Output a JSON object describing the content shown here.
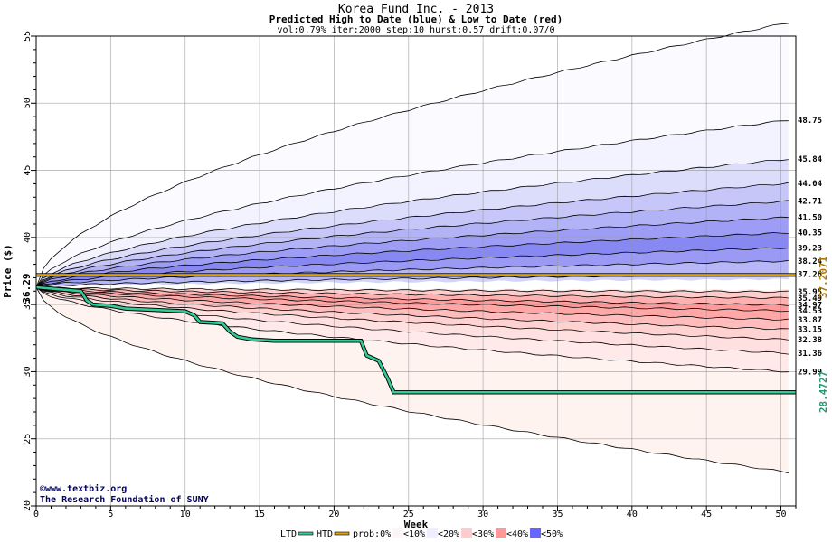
{
  "chart_data": {
    "type": "area",
    "title": "Korea Fund Inc. - 2013",
    "subtitle": "Predicted High to Date (blue) &  Low to Date (red)",
    "params": "vol:0.79% iter:2000 step:10 hurst:0.57 drift:0.07/0",
    "xlabel": "Week",
    "ylabel": "Price ($)",
    "xlim": [
      0,
      51
    ],
    "ylim": [
      20,
      55
    ],
    "xticks": [
      0,
      5,
      10,
      15,
      20,
      25,
      30,
      35,
      40,
      45,
      50
    ],
    "yticks": [
      20,
      25,
      30,
      35,
      40,
      45,
      50,
      55
    ],
    "grid": true,
    "start_price": 36.29,
    "start_label": "36.29",
    "right_labels": [
      "48.75",
      "45.84",
      "44.04",
      "42.71",
      "41.50",
      "40.35",
      "39.23",
      "38.24",
      "37.26",
      "35.95",
      "35.49",
      "34.97",
      "34.53",
      "33.87",
      "33.15",
      "32.38",
      "31.36",
      "29.99"
    ],
    "high_bands_end": [
      48.75,
      45.84,
      44.04,
      42.71,
      41.5,
      40.35,
      39.23,
      38.24,
      37.26
    ],
    "low_bands_end": [
      35.95,
      35.49,
      34.97,
      34.53,
      33.87,
      33.15,
      32.38,
      31.36,
      29.99
    ],
    "outer_high_end": 56.0,
    "outer_low_end": 22.5,
    "prob_line": {
      "value": 37.2071,
      "label": "37.2071",
      "color": "#e0a000"
    },
    "ltd_line": {
      "label": "28.4727",
      "color": "#33cc99",
      "points": [
        [
          0,
          36.29
        ],
        [
          3,
          36.0
        ],
        [
          3.4,
          35.3
        ],
        [
          3.8,
          35.0
        ],
        [
          5,
          34.9
        ],
        [
          6,
          34.7
        ],
        [
          10,
          34.5
        ],
        [
          10.6,
          34.2
        ],
        [
          11,
          33.7
        ],
        [
          12.5,
          33.6
        ],
        [
          13,
          33.0
        ],
        [
          13.5,
          32.6
        ],
        [
          14.5,
          32.4
        ],
        [
          16,
          32.3
        ],
        [
          21.8,
          32.3
        ],
        [
          22.2,
          31.2
        ],
        [
          23,
          30.8
        ],
        [
          23.6,
          29.5
        ],
        [
          24,
          28.47
        ],
        [
          51,
          28.47
        ]
      ]
    },
    "credit": [
      "©www.textbiz.org",
      "The Research Foundation of SUNY"
    ],
    "legend": [
      {
        "label": "LTD",
        "swatch": "#33cc99"
      },
      {
        "label": "HTD",
        "swatch": "#e0a000"
      },
      {
        "label": "prob:0%",
        "swatch": ""
      },
      {
        "label": "<10%",
        "swatch": "#fdf5f5"
      },
      {
        "label": "<20%",
        "swatch": "#eeeeff"
      },
      {
        "label": "<30%",
        "swatch": "#ffcccc"
      },
      {
        "label": "<40%",
        "swatch": "#ff9999"
      },
      {
        "label": "<50%",
        "swatch": "#6666ff"
      }
    ],
    "colors": {
      "high_fills": [
        "#f3f3ff",
        "#dcdcfb",
        "#c6c6f8",
        "#b2b2f6",
        "#9d9df5",
        "#8888f3",
        "#9a9af5",
        "#b7b7f8",
        "#d4d4fb"
      ],
      "low_fills": [
        "#ffe6e6",
        "#ffcccc",
        "#ffb0b0",
        "#ff9a9a",
        "#ffa6a6",
        "#ffbcbc",
        "#ffd2d2",
        "#ffe0e0",
        "#ffe9e9"
      ],
      "outer_high_fill": "#fafaff",
      "outer_low_fill": "#fff3f0"
    }
  }
}
